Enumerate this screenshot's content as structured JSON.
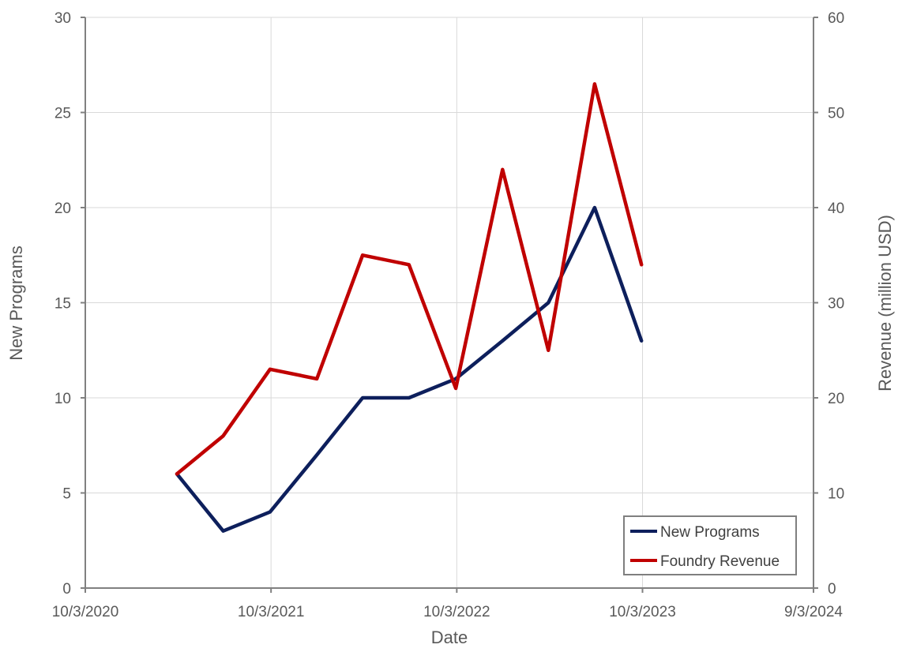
{
  "chart_data": {
    "type": "line",
    "xlabel": "Date",
    "ylabel": "New Programs",
    "y2label": "Revenue (million USD)",
    "ylim": [
      0,
      30
    ],
    "y2lim": [
      0,
      60
    ],
    "y_ticks": [
      0,
      5,
      10,
      15,
      20,
      25,
      30
    ],
    "y2_ticks": [
      0,
      10,
      20,
      30,
      40,
      50,
      60
    ],
    "xlim": [
      "2020-10-03",
      "2024-09-03"
    ],
    "x_ticks": [
      "2020-10-03",
      "2021-10-03",
      "2022-10-03",
      "2023-10-03",
      "2024-09-03"
    ],
    "x_tick_labels": [
      "10/3/2020",
      "10/3/2021",
      "10/3/2022",
      "10/3/2023",
      "9/3/2024"
    ],
    "grid": true,
    "legend_position": "bottom-right",
    "series": [
      {
        "name": "New Programs",
        "axis": "left",
        "color": "#0d1f5c",
        "x": [
          "2021-04-01",
          "2021-07-01",
          "2021-10-01",
          "2022-01-01",
          "2022-04-01",
          "2022-07-01",
          "2022-10-01",
          "2023-01-01",
          "2023-04-01",
          "2023-07-01",
          "2023-10-01"
        ],
        "values": [
          6,
          3,
          4,
          7,
          10,
          10,
          11,
          13,
          15,
          20,
          13
        ]
      },
      {
        "name": "Foundry Revenue",
        "axis": "right",
        "color": "#c00000",
        "x": [
          "2021-04-01",
          "2021-07-01",
          "2021-10-01",
          "2022-01-01",
          "2022-04-01",
          "2022-07-01",
          "2022-10-01",
          "2023-01-01",
          "2023-04-01",
          "2023-07-01",
          "2023-10-01"
        ],
        "values": [
          12,
          16,
          23,
          22,
          35,
          34,
          21,
          44,
          25,
          53,
          34
        ]
      }
    ]
  }
}
